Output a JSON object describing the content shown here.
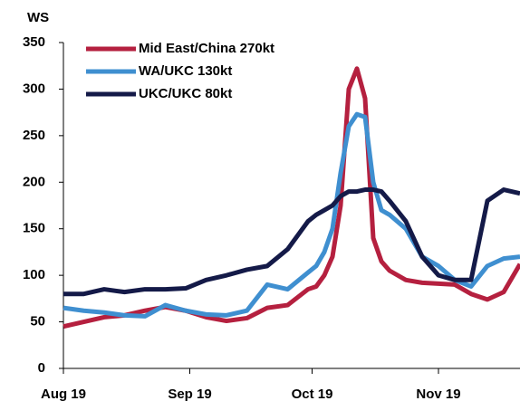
{
  "chart_data": {
    "type": "line",
    "y_label": "WS",
    "x": [
      0,
      5,
      10,
      15,
      20,
      25,
      30,
      35,
      40,
      45,
      50,
      55,
      60,
      62,
      64,
      66,
      68,
      70,
      72,
      74,
      76,
      78,
      80,
      84,
      88,
      92,
      96,
      100,
      104,
      108,
      112
    ],
    "xlim": [
      0,
      112
    ],
    "xticks": [
      {
        "value": 0,
        "label": "Aug 19"
      },
      {
        "value": 31,
        "label": "Sep 19"
      },
      {
        "value": 61,
        "label": "Oct 19"
      },
      {
        "value": 92,
        "label": "Nov 19"
      }
    ],
    "ylim": [
      0,
      350
    ],
    "yticks": [
      0,
      50,
      100,
      150,
      200,
      250,
      300,
      350
    ],
    "grid": false,
    "legend": "upper left",
    "series": [
      {
        "name": "Mid East/China 270kt",
        "color": "#b5203f",
        "values": [
          45,
          50,
          55,
          57,
          62,
          66,
          62,
          55,
          51,
          54,
          65,
          68,
          85,
          88,
          100,
          120,
          175,
          300,
          322,
          290,
          140,
          115,
          105,
          95,
          92,
          91,
          90,
          80,
          74,
          82,
          112
        ]
      },
      {
        "name": "WA/UKC 130kt",
        "color": "#3f8fd0",
        "values": [
          65,
          62,
          60,
          57,
          56,
          68,
          62,
          58,
          57,
          62,
          90,
          85,
          103,
          110,
          125,
          150,
          210,
          260,
          273,
          270,
          200,
          170,
          165,
          150,
          120,
          110,
          95,
          88,
          110,
          118,
          120
        ]
      },
      {
        "name": "UKC/UKC 80kt",
        "color": "#141a48",
        "values": [
          80,
          80,
          85,
          82,
          85,
          85,
          86,
          95,
          100,
          106,
          110,
          128,
          158,
          165,
          170,
          175,
          185,
          190,
          190,
          192,
          192,
          190,
          180,
          158,
          120,
          100,
          95,
          95,
          180,
          192,
          188
        ]
      }
    ]
  }
}
